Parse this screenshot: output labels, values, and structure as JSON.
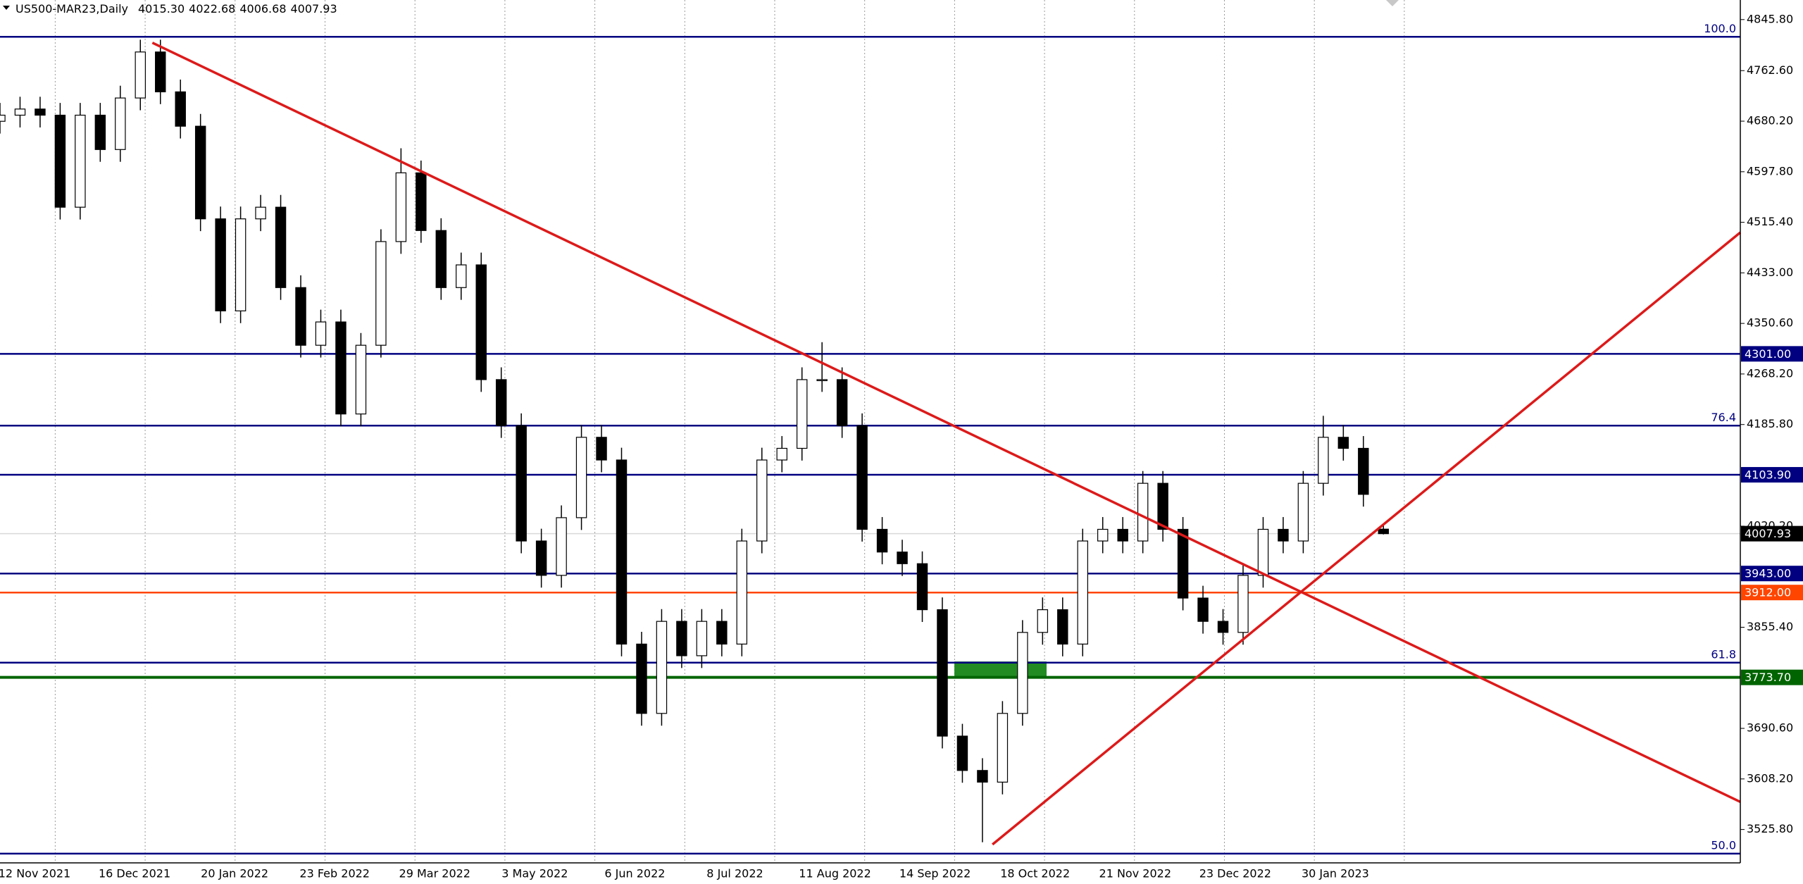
{
  "chart_data": {
    "type": "candlestick",
    "title": "US500-MAR23,Daily",
    "header_values": [
      "4015.30",
      "4022.68",
      "4006.68",
      "4007.93"
    ],
    "x_labels": [
      "12 Nov 2021",
      "16 Dec 2021",
      "20 Jan 2022",
      "23 Feb 2022",
      "29 Mar 2022",
      "3 May 2022",
      "6 Jun 2022",
      "8 Jul 2022",
      "11 Aug 2022",
      "14 Sep 2022",
      "18 Oct 2022",
      "21 Nov 2022",
      "23 Dec 2022",
      "30 Jan 2023"
    ],
    "xlim": [
      0,
      86.8
    ],
    "ylim": [
      3471.4,
      4877.7
    ],
    "yticks": [
      {
        "value": 4845.8,
        "label": "4845.80"
      },
      {
        "value": 4762.6,
        "label": "4762.60"
      },
      {
        "value": 4680.2,
        "label": "4680.20"
      },
      {
        "value": 4597.8,
        "label": "4597.80"
      },
      {
        "value": 4515.4,
        "label": "4515.40"
      },
      {
        "value": 4433,
        "label": "4433.00"
      },
      {
        "value": 4350.6,
        "label": "4350.60"
      },
      {
        "value": 4268.2,
        "label": "4268.20"
      },
      {
        "value": 4185.8,
        "label": "4185.80"
      },
      {
        "value": 4020.2,
        "label": "4020.20"
      },
      {
        "value": 3855.4,
        "label": "3855.40"
      },
      {
        "value": 3690.6,
        "label": "3690.60"
      },
      {
        "value": 3608.2,
        "label": "3608.20"
      },
      {
        "value": 3525.8,
        "label": "3525.80"
      }
    ],
    "up_color": "#ffffff",
    "down_color": "#000000",
    "candles": {
      "open": [
        4680,
        4690,
        4700,
        4690,
        4540,
        4690,
        4634,
        4718,
        4793,
        4728,
        4672,
        4521,
        4371,
        4521,
        4540,
        4409,
        4315,
        4353,
        4203,
        4315,
        4484,
        4596,
        4502,
        4409,
        4446,
        4259,
        4184,
        3996,
        3940,
        4034,
        4165,
        4128,
        3828,
        3715,
        3865,
        3809,
        3865,
        3828,
        3996,
        4128,
        4147,
        4259,
        4259,
        4184,
        4015,
        3978,
        3959,
        3884,
        3678,
        3622,
        3603,
        3715,
        3847,
        3884,
        3828,
        3996,
        4015,
        3996,
        4090,
        4015,
        3903,
        3865,
        3847,
        3940,
        4015,
        3996,
        4090,
        4165,
        4147,
        4015.3
      ],
      "high": [
        4710,
        4720,
        4720,
        4710,
        4710,
        4710,
        4738,
        4813,
        4813,
        4748,
        4692,
        4541,
        4541,
        4560,
        4560,
        4429,
        4373,
        4373,
        4335,
        4504,
        4636,
        4616,
        4522,
        4466,
        4466,
        4279,
        4204,
        4016,
        4054,
        4185,
        4185,
        4148,
        3848,
        3885,
        3885,
        3885,
        3885,
        4016,
        4148,
        4167,
        4279,
        4320,
        4279,
        4204,
        4035,
        3998,
        3979,
        3904,
        3698,
        3642,
        3735,
        3867,
        3904,
        3904,
        4016,
        4035,
        4035,
        4110,
        4110,
        4035,
        3923,
        3885,
        3960,
        4035,
        4035,
        4110,
        4200,
        4185,
        4167,
        4022.68
      ],
      "low": [
        4660,
        4670,
        4670,
        4520,
        4520,
        4614,
        4614,
        4698,
        4708,
        4652,
        4501,
        4351,
        4351,
        4501,
        4389,
        4295,
        4295,
        4183,
        4183,
        4295,
        4464,
        4482,
        4389,
        4389,
        4239,
        4164,
        3976,
        3920,
        3920,
        4014,
        4108,
        3808,
        3695,
        3695,
        3789,
        3789,
        3808,
        3808,
        3976,
        4108,
        4127,
        4239,
        4164,
        3995,
        3958,
        3939,
        3864,
        3658,
        3602,
        3505,
        3583,
        3695,
        3827,
        3808,
        3808,
        3976,
        3976,
        3976,
        3995,
        3883,
        3845,
        3827,
        3827,
        3920,
        3976,
        3976,
        4070,
        4127,
        4052,
        4006.68
      ],
      "close": [
        4690,
        4700,
        4690,
        4540,
        4690,
        4634,
        4718,
        4793,
        4728,
        4672,
        4521,
        4371,
        4521,
        4540,
        4409,
        4315,
        4353,
        4203,
        4315,
        4484,
        4596,
        4502,
        4409,
        4446,
        4259,
        4184,
        3996,
        3940,
        4034,
        4165,
        4128,
        3828,
        3715,
        3865,
        3809,
        3865,
        3828,
        3996,
        4128,
        4147,
        4259,
        4259,
        4184,
        4015,
        3978,
        3959,
        3884,
        3678,
        3622,
        3603,
        3715,
        3847,
        3884,
        3828,
        3996,
        4015,
        3996,
        4090,
        4015,
        3903,
        3865,
        3847,
        3940,
        4015,
        3996,
        4090,
        4165,
        4147,
        4072,
        4007.93
      ]
    },
    "fib_levels": [
      {
        "price": 4817.7,
        "level": "100.0",
        "color": "#000080"
      },
      {
        "price": 4184,
        "level": "76.4",
        "color": "#000080"
      },
      {
        "price": 3797.7,
        "level": "61.8",
        "color": "#000080"
      },
      {
        "price": 3486.4,
        "level": "50.0",
        "color": "#000080"
      }
    ],
    "price_levels": [
      {
        "price": 4301,
        "price_label": "4301.00",
        "color": "#000080"
      },
      {
        "price": 4103.9,
        "price_label": "4103.90",
        "color": "#000080"
      },
      {
        "price": 4007.93,
        "price_label": "4007.93",
        "color": "#000000",
        "line_color": "#d8d8d8"
      },
      {
        "price": 3943,
        "price_label": "3943.00",
        "color": "#000080"
      },
      {
        "price": 3912,
        "price_label": "3912.00",
        "color": "#ff4500"
      },
      {
        "price": 3773.7,
        "price_label": "3773.70",
        "color": "#006400"
      }
    ],
    "trendlines": [
      {
        "color": "#dd1a1a",
        "x": [
          7.6,
          86.8
        ],
        "y": [
          4808,
          3570.8
        ]
      },
      {
        "color": "#dd1a1a",
        "x": [
          49.5,
          86.8
        ],
        "y": [
          3501.4,
          4498.9
        ]
      }
    ],
    "zones": [
      {
        "color": "#228b22",
        "x": [
          47.6,
          52.2
        ],
        "y": [
          3773.3,
          3799.6
        ]
      }
    ]
  }
}
